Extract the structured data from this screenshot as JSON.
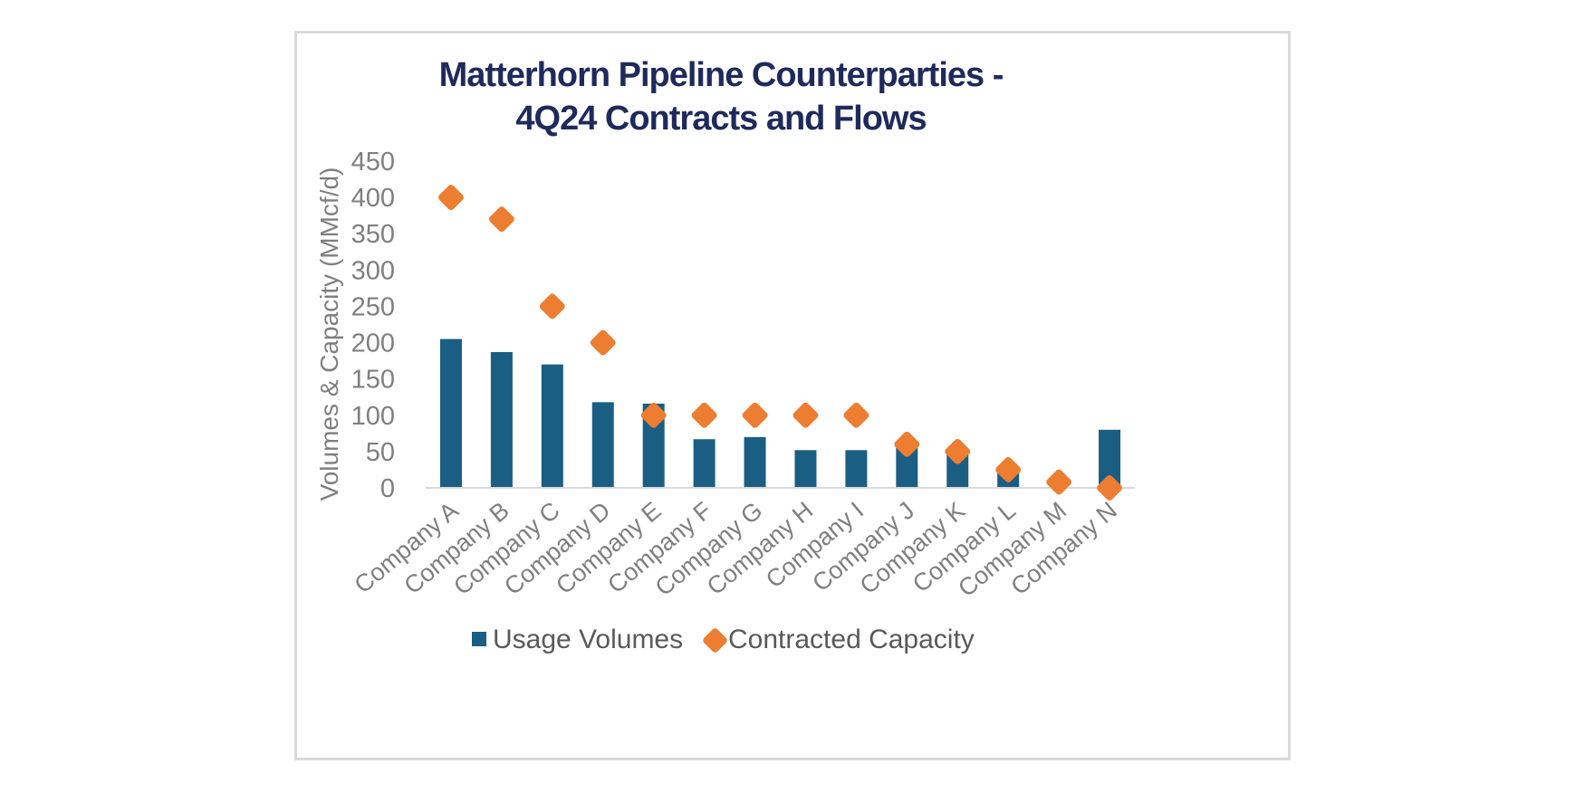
{
  "chart_data": {
    "type": "bar",
    "title_lines": [
      "Matterhorn Pipeline Counterparties -",
      "4Q24 Contracts and Flows"
    ],
    "xlabel": "",
    "ylabel": "Volumes & Capacity  (MMcf/d)",
    "ylim": [
      0,
      450
    ],
    "yticks": [
      0,
      50,
      100,
      150,
      200,
      250,
      300,
      350,
      400,
      450
    ],
    "grid": false,
    "legend_position": "bottom",
    "categories": [
      "Company A",
      "Company B",
      "Company C",
      "Company D",
      "Company E",
      "Company F",
      "Company G",
      "Company H",
      "Company I",
      "Company J",
      "Company K",
      "Company L",
      "Company M",
      "Company N"
    ],
    "series": [
      {
        "name": "Usage Volumes",
        "type": "bar",
        "color": "#1b5e84",
        "values": [
          205,
          187,
          170,
          118,
          116,
          67,
          70,
          52,
          52,
          55,
          46,
          22,
          0,
          80
        ]
      },
      {
        "name": "Contracted Capacity",
        "type": "scatter",
        "marker": "diamond",
        "color": "#ed7d31",
        "values": [
          400,
          370,
          250,
          200,
          100,
          100,
          100,
          100,
          100,
          60,
          50,
          25,
          8,
          0
        ]
      }
    ]
  }
}
